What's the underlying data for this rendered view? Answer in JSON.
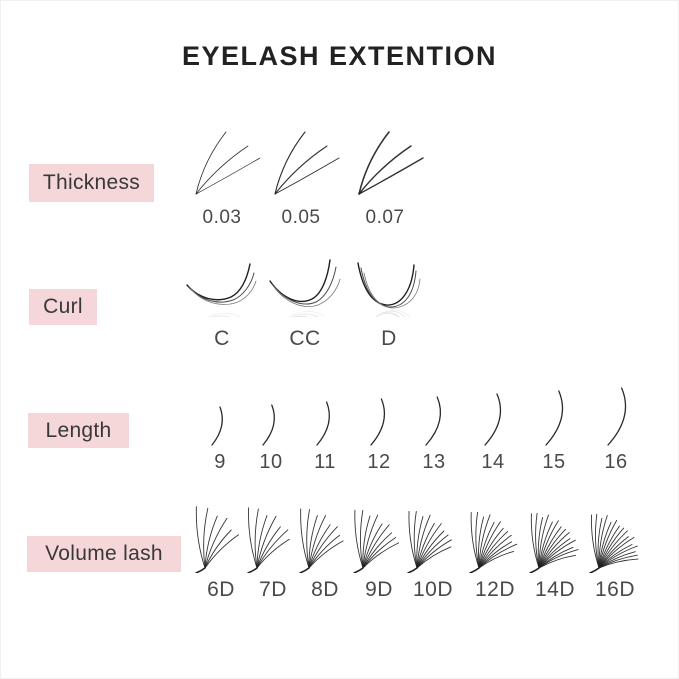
{
  "title": "EYELASH EXTENTION",
  "colors": {
    "accent_pink": "#f5d7da",
    "lash_stroke": "#1f1f1f",
    "title_text": "#222222",
    "label_text": "#383838",
    "value_text": "#4a4a4a"
  },
  "rows": {
    "thickness": {
      "label": "Thickness",
      "items": [
        {
          "label": "0.03"
        },
        {
          "label": "0.05"
        },
        {
          "label": "0.07"
        }
      ]
    },
    "curl": {
      "label": "Curl",
      "items": [
        {
          "label": "C"
        },
        {
          "label": "CC"
        },
        {
          "label": "D"
        }
      ]
    },
    "length": {
      "label": "Length",
      "items": [
        {
          "label": "9"
        },
        {
          "label": "10"
        },
        {
          "label": "11"
        },
        {
          "label": "12"
        },
        {
          "label": "13"
        },
        {
          "label": "14"
        },
        {
          "label": "15"
        },
        {
          "label": "16"
        }
      ]
    },
    "volume": {
      "label": "Volume lash",
      "items": [
        {
          "label": "6D",
          "lashes": 6
        },
        {
          "label": "7D",
          "lashes": 7
        },
        {
          "label": "8D",
          "lashes": 8
        },
        {
          "label": "9D",
          "lashes": 9
        },
        {
          "label": "10D",
          "lashes": 10
        },
        {
          "label": "12D",
          "lashes": 12
        },
        {
          "label": "14D",
          "lashes": 14
        },
        {
          "label": "16D",
          "lashes": 16
        }
      ]
    }
  }
}
